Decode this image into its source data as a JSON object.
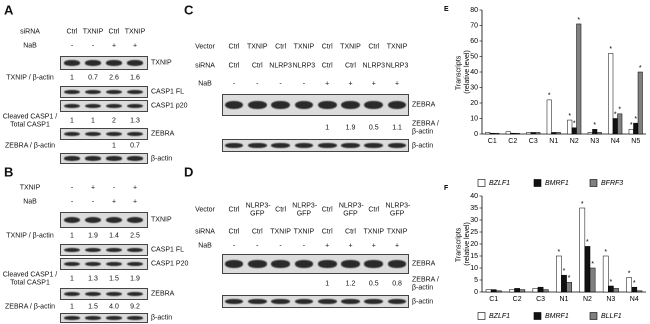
{
  "blots": [
    {
      "label": "A",
      "headers": [
        {
          "name": "siRNA",
          "lanes": [
            "Ctrl",
            "TXNIP",
            "Ctrl",
            "TXNIP"
          ]
        },
        {
          "name": "NaB",
          "lanes": [
            "-",
            "-",
            "+",
            "+"
          ]
        }
      ],
      "rows": [
        {
          "band": "TXNIP"
        },
        {
          "ratio": "TXNIP / β-actin",
          "values": [
            "1",
            "0.7",
            "2.6",
            "1.6"
          ]
        },
        {
          "band": "CASP1 FL"
        },
        {
          "band": "CASP1 p20"
        },
        {
          "ratio": "Cleaved CASP1 / Total CASP1",
          "values": [
            "1",
            "1",
            "2",
            "1.3"
          ]
        },
        {
          "band": "ZEBRA"
        },
        {
          "ratio": "ZEBRA / β-actin",
          "values": [
            null,
            null,
            "1",
            "0.7"
          ]
        },
        {
          "band": "β-actin"
        }
      ]
    },
    {
      "label": "B",
      "headers": [
        {
          "name": "TXNIP",
          "lanes": [
            "-",
            "+",
            "-",
            "+"
          ]
        },
        {
          "name": "NaB",
          "lanes": [
            "-",
            "-",
            "+",
            "+"
          ]
        }
      ],
      "rows": [
        {
          "band": "TXNIP"
        },
        {
          "ratio": "TXNIP / β-actin",
          "values": [
            "1",
            "1.9",
            "1.4",
            "2.5"
          ]
        },
        {
          "band": "CASP1 FL"
        },
        {
          "band": "CASP1 P20"
        },
        {
          "ratio": "Cleaved CASP1 / Total CASP1",
          "values": [
            "1",
            "1.3",
            "1.5",
            "1.9"
          ]
        },
        {
          "band": "ZEBRA"
        },
        {
          "ratio": "ZEBRA / β-actin",
          "values": [
            "1",
            "1.5",
            "4.0",
            "9.2"
          ]
        },
        {
          "band": "β-actin"
        }
      ]
    },
    {
      "label": "C",
      "headers": [
        {
          "name": "Vector",
          "lanes": [
            "Ctrl",
            "TXNIP",
            "Ctrl",
            "TXNIP",
            "Ctrl",
            "TXNIP",
            "Ctrl",
            "TXNIP"
          ]
        },
        {
          "name": "siRNA",
          "lanes": [
            "Ctrl",
            "Ctrl",
            "NLRP3",
            "NLRP3",
            "Ctrl",
            "Ctrl",
            "NLRP3",
            "NLRP3"
          ]
        },
        {
          "name": "NaB",
          "lanes": [
            "-",
            "-",
            "-",
            "-",
            "+",
            "+",
            "+",
            "+"
          ]
        }
      ],
      "rows": [
        {
          "band": "ZEBRA"
        },
        {
          "ratio": "ZEBRA / β-actin",
          "values": [
            null,
            null,
            null,
            null,
            "1",
            "1.9",
            "0.5",
            "1.1"
          ]
        },
        {
          "band": "β-actin"
        }
      ]
    },
    {
      "label": "D",
      "headers": [
        {
          "name": "Vector",
          "lanes": [
            "Ctrl",
            "NLRP3-GFP",
            "Ctrl",
            "NLRP3-GFP",
            "Ctrl",
            "NLRP3-GFP",
            "Ctrl",
            "NLRP3-GFP"
          ]
        },
        {
          "name": "siRNA",
          "lanes": [
            "Ctrl",
            "Ctrl",
            "TXNIP",
            "TXNIP",
            "Ctrl",
            "Ctrl",
            "TXNIP",
            "TXNIP"
          ]
        },
        {
          "name": "NaB",
          "lanes": [
            "-",
            "-",
            "-",
            "-",
            "+",
            "+",
            "+",
            "+"
          ]
        }
      ],
      "rows": [
        {
          "band": "ZEBRA"
        },
        {
          "ratio": "ZEBRA / β-actin",
          "values": [
            null,
            null,
            null,
            null,
            "1",
            "1.2",
            "0.5",
            "0.8"
          ]
        },
        {
          "band": "β-actin"
        }
      ]
    }
  ],
  "chart_data": [
    {
      "type": "bar",
      "panel_label": "E",
      "y_label": "Transcripts (relative level)",
      "categories": [
        "C1",
        "C2",
        "C3",
        "N1",
        "N2",
        "N3",
        "N4",
        "N5"
      ],
      "series": [
        {
          "name": "BZLF1",
          "color": "#ffffff",
          "values": [
            1,
            1.5,
            1,
            22,
            9,
            1,
            52,
            3
          ],
          "stars": [
            null,
            null,
            null,
            "*",
            "*",
            null,
            "*",
            "*"
          ]
        },
        {
          "name": "BMRF1",
          "color": "#111111",
          "values": [
            0.5,
            0.5,
            1,
            1,
            4,
            3,
            10,
            7
          ],
          "stars": [
            null,
            null,
            null,
            null,
            "*",
            "*",
            "*",
            "*"
          ]
        },
        {
          "name": "BFRF3",
          "color": "#808080",
          "values": [
            0.5,
            0.5,
            1,
            1,
            71,
            1,
            13,
            40
          ],
          "stars": [
            null,
            null,
            null,
            null,
            "*",
            null,
            "*",
            "*"
          ]
        }
      ],
      "ylim": [
        0,
        80
      ],
      "yticks": [
        0,
        10,
        20,
        30,
        40,
        50,
        60,
        70,
        80
      ]
    },
    {
      "type": "bar",
      "panel_label": "F",
      "y_label": "Transcripts (relative level)",
      "categories": [
        "C1",
        "C2",
        "C3",
        "N1",
        "N2",
        "N3",
        "N4"
      ],
      "series": [
        {
          "name": "BZLF1",
          "color": "#ffffff",
          "values": [
            1,
            1,
            1.5,
            15,
            35,
            15,
            6
          ],
          "stars": [
            null,
            null,
            null,
            "*",
            "*",
            "*",
            "*"
          ]
        },
        {
          "name": "BMRF1",
          "color": "#111111",
          "values": [
            1,
            1.5,
            2,
            7,
            19,
            2.5,
            2
          ],
          "stars": [
            null,
            null,
            null,
            "*",
            "*",
            "*",
            "*"
          ]
        },
        {
          "name": "BLLF1",
          "color": "#808080",
          "values": [
            0.5,
            1,
            1,
            4,
            10,
            1.5,
            0.5
          ],
          "stars": [
            null,
            null,
            null,
            "*",
            "*",
            null,
            null
          ]
        }
      ],
      "ylim": [
        0,
        40
      ],
      "yticks": [
        0,
        5,
        10,
        15,
        20,
        25,
        30,
        35,
        40
      ]
    }
  ]
}
